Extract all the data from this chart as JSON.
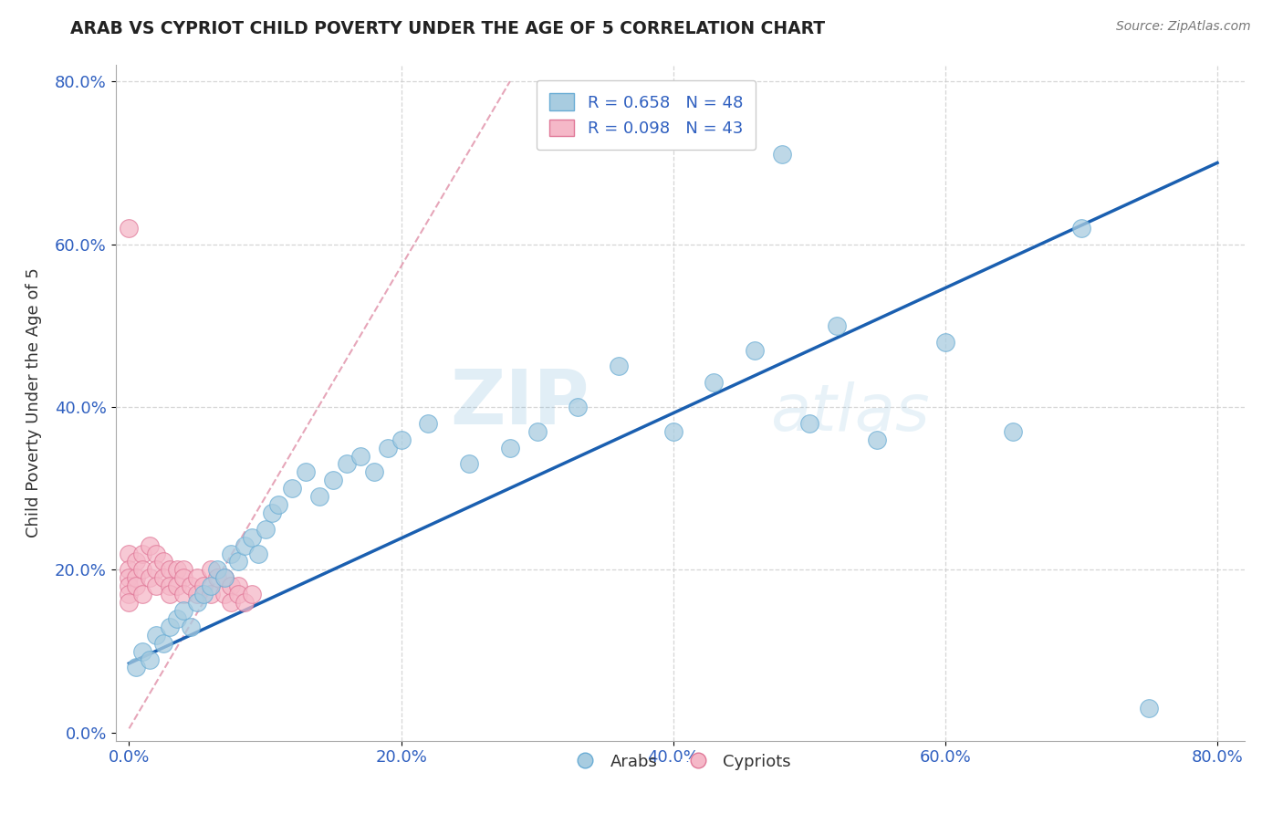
{
  "title": "ARAB VS CYPRIOT CHILD POVERTY UNDER THE AGE OF 5 CORRELATION CHART",
  "source": "Source: ZipAtlas.com",
  "ylabel": "Child Poverty Under the Age of 5",
  "xlim": [
    -0.01,
    0.82
  ],
  "ylim": [
    -0.01,
    0.82
  ],
  "xticks": [
    0.0,
    0.2,
    0.4,
    0.6,
    0.8
  ],
  "yticks": [
    0.0,
    0.2,
    0.4,
    0.6,
    0.8
  ],
  "xticklabels": [
    "0.0%",
    "20.0%",
    "40.0%",
    "60.0%",
    "80.0%"
  ],
  "yticklabels": [
    "0.0%",
    "20.0%",
    "40.0%",
    "60.0%",
    "80.0%"
  ],
  "arab_color": "#a8cce0",
  "arab_edge_color": "#6aadd5",
  "cypriot_color": "#f5b8c8",
  "cypriot_edge_color": "#e07898",
  "trend_color_arab": "#1a5fb0",
  "trend_color_cypriot": "#e090a8",
  "background_color": "#ffffff",
  "grid_color": "#cccccc",
  "R_arab": 0.658,
  "N_arab": 48,
  "R_cypriot": 0.098,
  "N_cypriot": 43,
  "watermark_zip": "ZIP",
  "watermark_atlas": "atlas",
  "arab_x": [
    0.005,
    0.01,
    0.015,
    0.02,
    0.025,
    0.03,
    0.035,
    0.04,
    0.045,
    0.05,
    0.055,
    0.06,
    0.065,
    0.07,
    0.075,
    0.08,
    0.085,
    0.09,
    0.095,
    0.1,
    0.105,
    0.11,
    0.12,
    0.13,
    0.14,
    0.15,
    0.16,
    0.17,
    0.18,
    0.19,
    0.2,
    0.22,
    0.25,
    0.28,
    0.3,
    0.33,
    0.36,
    0.4,
    0.43,
    0.46,
    0.48,
    0.5,
    0.52,
    0.55,
    0.6,
    0.65,
    0.7,
    0.75
  ],
  "arab_y": [
    0.08,
    0.1,
    0.09,
    0.12,
    0.11,
    0.13,
    0.14,
    0.15,
    0.13,
    0.16,
    0.17,
    0.18,
    0.2,
    0.19,
    0.22,
    0.21,
    0.23,
    0.24,
    0.22,
    0.25,
    0.27,
    0.28,
    0.3,
    0.32,
    0.29,
    0.31,
    0.33,
    0.34,
    0.32,
    0.35,
    0.36,
    0.38,
    0.33,
    0.35,
    0.37,
    0.4,
    0.45,
    0.37,
    0.43,
    0.47,
    0.71,
    0.38,
    0.5,
    0.36,
    0.48,
    0.37,
    0.62,
    0.03
  ],
  "cypriot_x": [
    0.0,
    0.0,
    0.0,
    0.0,
    0.0,
    0.0,
    0.0,
    0.005,
    0.005,
    0.005,
    0.01,
    0.01,
    0.01,
    0.015,
    0.015,
    0.02,
    0.02,
    0.02,
    0.025,
    0.025,
    0.03,
    0.03,
    0.03,
    0.035,
    0.035,
    0.04,
    0.04,
    0.04,
    0.045,
    0.05,
    0.05,
    0.055,
    0.06,
    0.06,
    0.065,
    0.07,
    0.07,
    0.075,
    0.075,
    0.08,
    0.08,
    0.085,
    0.09
  ],
  "cypriot_y": [
    0.62,
    0.22,
    0.2,
    0.19,
    0.18,
    0.17,
    0.16,
    0.21,
    0.19,
    0.18,
    0.22,
    0.2,
    0.17,
    0.23,
    0.19,
    0.22,
    0.2,
    0.18,
    0.21,
    0.19,
    0.2,
    0.18,
    0.17,
    0.2,
    0.18,
    0.2,
    0.19,
    0.17,
    0.18,
    0.19,
    0.17,
    0.18,
    0.2,
    0.17,
    0.19,
    0.19,
    0.17,
    0.18,
    0.16,
    0.18,
    0.17,
    0.16,
    0.17
  ],
  "arab_trend_x0": 0.0,
  "arab_trend_y0": 0.085,
  "arab_trend_x1": 0.8,
  "arab_trend_y1": 0.7,
  "cypriot_trend_x0": 0.0,
  "cypriot_trend_y0": 0.005,
  "cypriot_trend_x1": 0.28,
  "cypriot_trend_y1": 0.8
}
